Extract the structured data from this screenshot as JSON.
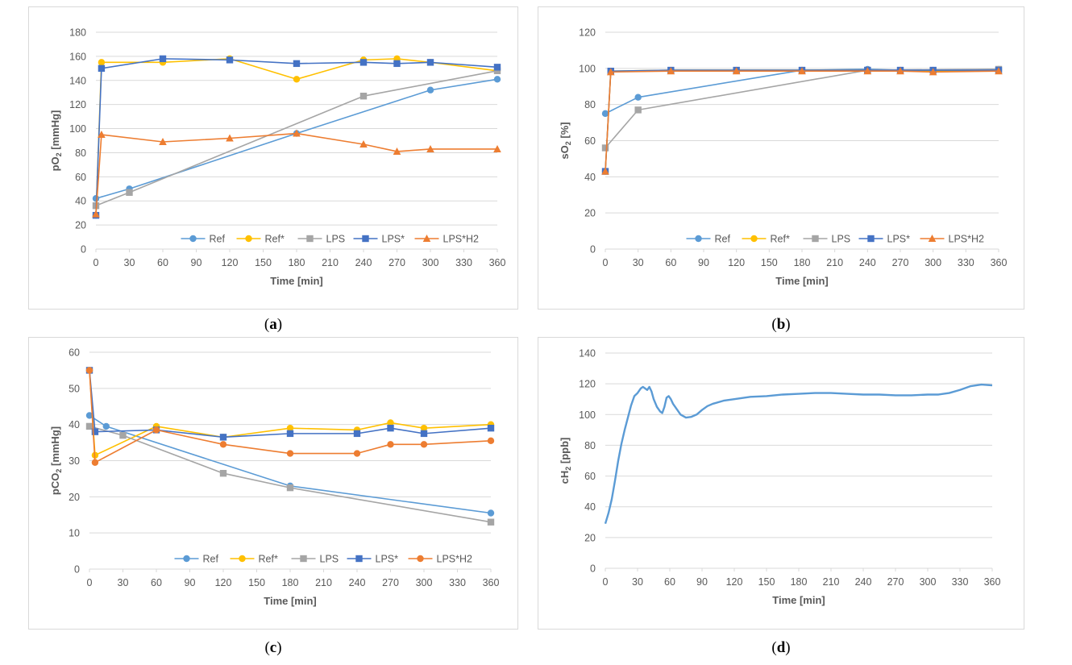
{
  "colors": {
    "Ref": "#5b9bd5",
    "Ref*": "#ffc000",
    "LPS": "#a5a5a5",
    "LPS*": "#4472c4",
    "LPS*H2": "#ed7d31",
    "grid": "#d9d9d9",
    "frame": "#d9d9d9",
    "text": "#595959"
  },
  "chart_data": [
    {
      "id": "a",
      "type": "line",
      "caption": {
        "open": "(",
        "letter": "a",
        "close": ")"
      },
      "xlabel": "Time [min]",
      "ylabel": {
        "pre": "pO",
        "sub": "2",
        "post": " [mmHg]"
      },
      "xlim": [
        0,
        360
      ],
      "ylim": [
        0,
        180
      ],
      "xticks": [
        0,
        30,
        60,
        90,
        120,
        150,
        180,
        210,
        240,
        270,
        300,
        330,
        360
      ],
      "yticks": [
        0,
        20,
        40,
        60,
        80,
        100,
        120,
        140,
        160,
        180
      ],
      "grid": true,
      "legend": "bottom",
      "series": [
        {
          "name": "Ref",
          "marker": "circle",
          "x": [
            0,
            30,
            180,
            300,
            360
          ],
          "y": [
            42,
            50,
            96,
            132,
            141
          ]
        },
        {
          "name": "Ref*",
          "marker": "circle",
          "x": [
            0,
            5,
            60,
            120,
            180,
            240,
            270,
            300,
            360
          ],
          "y": [
            28,
            155,
            155,
            158,
            141,
            157,
            158,
            155,
            148
          ]
        },
        {
          "name": "LPS",
          "marker": "square",
          "x": [
            0,
            30,
            240,
            360
          ],
          "y": [
            36,
            47,
            127,
            148
          ]
        },
        {
          "name": "LPS*",
          "marker": "square",
          "x": [
            0,
            5,
            60,
            120,
            180,
            240,
            270,
            300,
            360
          ],
          "y": [
            28,
            150,
            158,
            157,
            154,
            155,
            154,
            155,
            151
          ]
        },
        {
          "name": "LPS*H2",
          "marker": "triangle",
          "x": [
            0,
            5,
            60,
            120,
            180,
            240,
            270,
            300,
            360
          ],
          "y": [
            29,
            95,
            89,
            92,
            96,
            87,
            81,
            83,
            83
          ]
        }
      ]
    },
    {
      "id": "b",
      "type": "line",
      "caption": {
        "open": "(",
        "letter": "b",
        "close": ")"
      },
      "xlabel": "Time [min]",
      "ylabel": {
        "pre": "sO",
        "sub": "2",
        "post": " [%]"
      },
      "xlim": [
        0,
        360
      ],
      "ylim": [
        0,
        120
      ],
      "xticks": [
        0,
        30,
        60,
        90,
        120,
        150,
        180,
        210,
        240,
        270,
        300,
        330,
        360
      ],
      "yticks": [
        0,
        20,
        40,
        60,
        80,
        100,
        120
      ],
      "grid": true,
      "legend": "bottom",
      "series": [
        {
          "name": "Ref",
          "marker": "circle",
          "x": [
            0,
            30,
            180,
            240,
            270,
            300,
            360
          ],
          "y": [
            75,
            84,
            99,
            99.5,
            99,
            99,
            99.5
          ]
        },
        {
          "name": "Ref*",
          "marker": "circle",
          "x": [
            0,
            5,
            60,
            120,
            180,
            240,
            270,
            300,
            360
          ],
          "y": [
            43,
            98.5,
            99,
            99,
            99,
            99,
            99,
            98.5,
            99
          ]
        },
        {
          "name": "LPS",
          "marker": "square",
          "x": [
            0,
            30,
            240,
            360
          ],
          "y": [
            56,
            77,
            99,
            99.5
          ]
        },
        {
          "name": "LPS*",
          "marker": "square",
          "x": [
            0,
            5,
            60,
            120,
            180,
            240,
            270,
            300,
            360
          ],
          "y": [
            43,
            98.5,
            99,
            99,
            99,
            99,
            99,
            99,
            99
          ]
        },
        {
          "name": "LPS*H2",
          "marker": "triangle",
          "x": [
            0,
            5,
            60,
            120,
            180,
            240,
            270,
            300,
            360
          ],
          "y": [
            43,
            98,
            98.5,
            98.5,
            98.5,
            98.5,
            98.5,
            98,
            98.5
          ]
        }
      ]
    },
    {
      "id": "c",
      "type": "line",
      "caption": {
        "open": "(",
        "letter": "c",
        "close": ")"
      },
      "xlabel": "Time [min]",
      "ylabel": {
        "pre": "pCO",
        "sub": "2",
        "post": " [mmHg]"
      },
      "xlim": [
        0,
        360
      ],
      "ylim": [
        0,
        60
      ],
      "xticks": [
        0,
        30,
        60,
        90,
        120,
        150,
        180,
        210,
        240,
        270,
        300,
        330,
        360
      ],
      "yticks": [
        0,
        10,
        20,
        30,
        40,
        50,
        60
      ],
      "grid": true,
      "legend": "bottom",
      "series": [
        {
          "name": "Ref",
          "marker": "circle",
          "x": [
            0,
            15,
            180,
            360
          ],
          "y": [
            42.5,
            39.5,
            23,
            15.5
          ]
        },
        {
          "name": "Ref*",
          "marker": "circle",
          "x": [
            0,
            5,
            60,
            120,
            180,
            240,
            270,
            300,
            360
          ],
          "y": [
            55,
            31.5,
            39.5,
            36.5,
            39,
            38.5,
            40.5,
            39,
            40
          ]
        },
        {
          "name": "LPS",
          "marker": "square",
          "x": [
            0,
            30,
            120,
            180,
            360
          ],
          "y": [
            39.5,
            37,
            26.5,
            22.5,
            13
          ]
        },
        {
          "name": "LPS*",
          "marker": "square",
          "x": [
            0,
            5,
            60,
            120,
            180,
            240,
            270,
            300,
            360
          ],
          "y": [
            55,
            38,
            38.5,
            36.5,
            37.5,
            37.5,
            39,
            37.5,
            39
          ]
        },
        {
          "name": "LPS*H2",
          "marker": "circle",
          "x": [
            0,
            5,
            60,
            120,
            180,
            240,
            270,
            300,
            360
          ],
          "y": [
            55,
            29.5,
            38.5,
            34.5,
            32,
            32,
            34.5,
            34.5,
            35.5
          ]
        }
      ]
    },
    {
      "id": "d",
      "type": "line",
      "caption": {
        "open": "(",
        "letter": "d",
        "close": ")"
      },
      "xlabel": "Time [min]",
      "ylabel": {
        "pre": "cH",
        "sub": "2",
        "post": " [ppb]"
      },
      "xlim": [
        0,
        360
      ],
      "ylim": [
        0,
        140
      ],
      "xticks": [
        0,
        30,
        60,
        90,
        120,
        150,
        180,
        210,
        240,
        270,
        300,
        330,
        360
      ],
      "yticks": [
        0,
        20,
        40,
        60,
        80,
        100,
        120,
        140
      ],
      "grid": true,
      "legend": "none",
      "series": [
        {
          "name": "cH2",
          "color": "#5b9bd5",
          "marker": "none",
          "x": [
            0,
            3,
            6,
            9,
            12,
            15,
            18,
            21,
            24,
            27,
            30,
            33,
            35,
            37,
            39,
            41,
            43,
            45,
            48,
            51,
            53,
            55,
            57,
            59,
            61,
            63,
            66,
            70,
            75,
            80,
            85,
            90,
            95,
            100,
            110,
            120,
            135,
            150,
            165,
            180,
            195,
            210,
            225,
            240,
            255,
            270,
            285,
            300,
            310,
            320,
            330,
            340,
            350,
            360
          ],
          "y": [
            29,
            36,
            45,
            57,
            70,
            81,
            90,
            98,
            106,
            112,
            114,
            117,
            118,
            117,
            116,
            118,
            115,
            110,
            105,
            102,
            101,
            105,
            111,
            112,
            110,
            107,
            104,
            100,
            98,
            98.5,
            100,
            103,
            105.5,
            107,
            109,
            110,
            111.5,
            112,
            113,
            113.5,
            114,
            114,
            113.5,
            113,
            113,
            112.5,
            112.5,
            113,
            113,
            114,
            116,
            118.5,
            119.5,
            119
          ]
        }
      ]
    }
  ]
}
